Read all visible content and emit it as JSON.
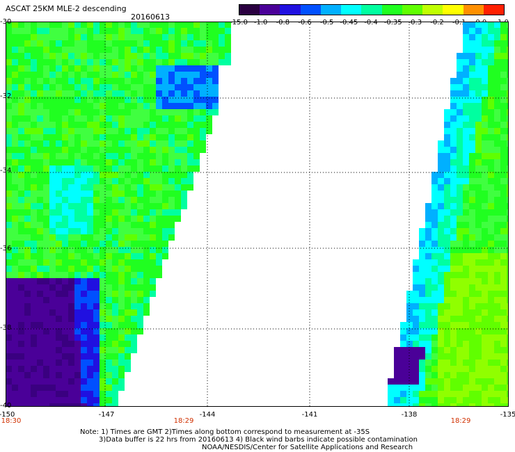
{
  "header": {
    "title": "ASCAT 25KM MLE-2 descending",
    "date": "20160613"
  },
  "colorbar": {
    "labels": [
      "-15.0",
      "-1.0",
      "-0.8",
      "-0.6",
      "-0.5",
      "-0.45",
      "-0.4",
      "-0.35",
      "-0.3",
      "-0.2",
      "-0.1",
      "0.0",
      "1.0"
    ],
    "colors": [
      "#2a0040",
      "#4a0098",
      "#2010e0",
      "#0050ff",
      "#00b0ff",
      "#00ffff",
      "#00ffa0",
      "#20ff20",
      "#60ff00",
      "#c0ff00",
      "#ffff00",
      "#ff9000",
      "#ff2000"
    ]
  },
  "axes": {
    "y_ticks": [
      "-30",
      "-32",
      "-34",
      "-36",
      "-38",
      "-40"
    ],
    "x_ticks": [
      "-150",
      "-147",
      "-144",
      "-141",
      "-138",
      "-135"
    ],
    "time_labels": [
      "18:30",
      "18:29",
      "18:29"
    ]
  },
  "map": {
    "lon_range": [
      -150,
      -135
    ],
    "lat_range": [
      -30,
      -40
    ],
    "colors": {
      "land_none": "#ffffff",
      "grid": "#000000"
    }
  },
  "notes": {
    "line1": "Note: 1) Times are GMT 2)Times along bottom correspond to measurement at -35S",
    "line2": "3)Data buffer is 22 hrs from 20160613 4) Black wind barbs indicate possible contamination",
    "line3": "NOAA/NESDIS/Center for Satellite Applications and Research"
  }
}
